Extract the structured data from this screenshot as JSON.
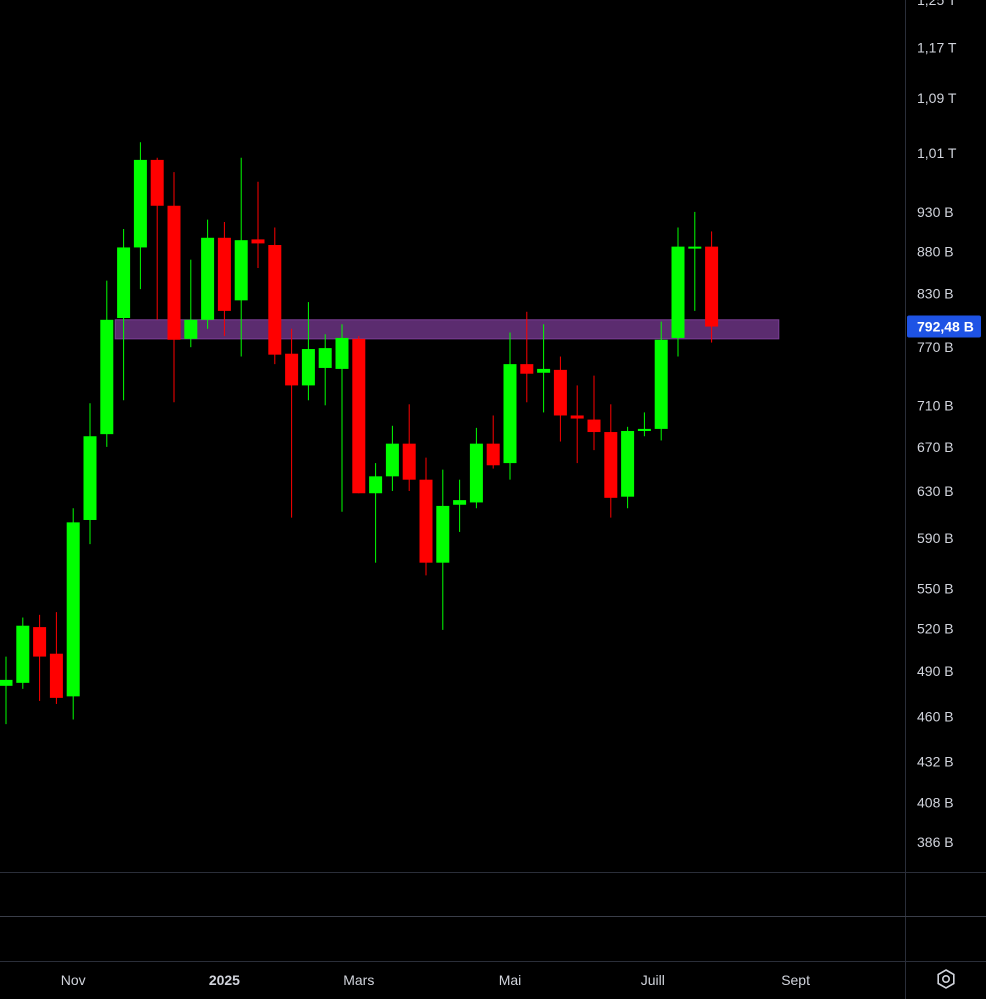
{
  "chart_data": {
    "type": "candlestick",
    "y_scale": "log",
    "y_unit_suffix": "B = milliards, T = billions",
    "y_ticks": [
      {
        "label": "1,25 T",
        "value": 1250
      },
      {
        "label": "1,17 T",
        "value": 1170
      },
      {
        "label": "1,09 T",
        "value": 1090
      },
      {
        "label": "1,01 T",
        "value": 1010
      },
      {
        "label": "930 B",
        "value": 930
      },
      {
        "label": "880 B",
        "value": 880
      },
      {
        "label": "830 B",
        "value": 830
      },
      {
        "label": "770 B",
        "value": 770
      },
      {
        "label": "710 B",
        "value": 710
      },
      {
        "label": "670 B",
        "value": 670
      },
      {
        "label": "630 B",
        "value": 630
      },
      {
        "label": "590 B",
        "value": 590
      },
      {
        "label": "550 B",
        "value": 550
      },
      {
        "label": "520 B",
        "value": 520
      },
      {
        "label": "490 B",
        "value": 490
      },
      {
        "label": "460 B",
        "value": 460
      },
      {
        "label": "432 B",
        "value": 432
      },
      {
        "label": "408 B",
        "value": 408
      },
      {
        "label": "386 B",
        "value": 386
      }
    ],
    "x_ticks": [
      {
        "label": "Nov",
        "week": 4,
        "bold": false
      },
      {
        "label": "2025",
        "week": 13,
        "bold": true
      },
      {
        "label": "Mars",
        "week": 21,
        "bold": false
      },
      {
        "label": "Mai",
        "week": 30,
        "bold": false
      },
      {
        "label": "Juill",
        "week": 38.5,
        "bold": false
      },
      {
        "label": "Sept",
        "week": 47,
        "bold": false
      }
    ],
    "current_price": {
      "label": "792,48 B",
      "value": 792.48,
      "color": "#1e53e5"
    },
    "resistance_band": {
      "low": 779,
      "high": 800,
      "start_week": 6.5,
      "end_week": 46,
      "color": "#5b2c6f"
    },
    "up_color": "#00ff00",
    "down_color": "#ff0000",
    "candles": [
      {
        "week": 0,
        "o": 480,
        "h": 500,
        "l": 455,
        "c": 484
      },
      {
        "week": 1,
        "o": 482,
        "h": 528,
        "l": 478,
        "c": 522
      },
      {
        "week": 2,
        "o": 521,
        "h": 530,
        "l": 470,
        "c": 500
      },
      {
        "week": 3,
        "o": 502,
        "h": 532,
        "l": 468,
        "c": 472
      },
      {
        "week": 4,
        "o": 473,
        "h": 615,
        "l": 458,
        "c": 603
      },
      {
        "week": 5,
        "o": 605,
        "h": 712,
        "l": 585,
        "c": 680
      },
      {
        "week": 6,
        "o": 682,
        "h": 845,
        "l": 670,
        "c": 800
      },
      {
        "week": 7,
        "o": 802,
        "h": 908,
        "l": 715,
        "c": 885
      },
      {
        "week": 8,
        "o": 885,
        "h": 1025,
        "l": 835,
        "c": 1000
      },
      {
        "week": 9,
        "o": 1000,
        "h": 1003,
        "l": 800,
        "c": 938
      },
      {
        "week": 10,
        "o": 938,
        "h": 983,
        "l": 713,
        "c": 778
      },
      {
        "week": 11,
        "o": 779,
        "h": 870,
        "l": 770,
        "c": 800
      },
      {
        "week": 12,
        "o": 800,
        "h": 920,
        "l": 790,
        "c": 897
      },
      {
        "week": 13,
        "o": 897,
        "h": 917,
        "l": 782,
        "c": 810
      },
      {
        "week": 14,
        "o": 822,
        "h": 1003,
        "l": 760,
        "c": 894
      },
      {
        "week": 15,
        "o": 895,
        "h": 970,
        "l": 860,
        "c": 890
      },
      {
        "week": 16,
        "o": 888,
        "h": 910,
        "l": 752,
        "c": 762
      },
      {
        "week": 17,
        "o": 763,
        "h": 790,
        "l": 607,
        "c": 730
      },
      {
        "week": 18,
        "o": 730,
        "h": 820,
        "l": 715,
        "c": 768
      },
      {
        "week": 19,
        "o": 748,
        "h": 784,
        "l": 710,
        "c": 769
      },
      {
        "week": 20,
        "o": 747,
        "h": 795,
        "l": 612,
        "c": 780
      },
      {
        "week": 21,
        "o": 779,
        "h": 782,
        "l": 628,
        "c": 628
      },
      {
        "week": 22,
        "o": 628,
        "h": 655,
        "l": 570,
        "c": 643
      },
      {
        "week": 23,
        "o": 643,
        "h": 690,
        "l": 630,
        "c": 673
      },
      {
        "week": 24,
        "o": 673,
        "h": 711,
        "l": 630,
        "c": 640
      },
      {
        "week": 25,
        "o": 640,
        "h": 660,
        "l": 560,
        "c": 570
      },
      {
        "week": 26,
        "o": 570,
        "h": 649,
        "l": 519,
        "c": 617
      },
      {
        "week": 27,
        "o": 618,
        "h": 640,
        "l": 595,
        "c": 622
      },
      {
        "week": 28,
        "o": 620,
        "h": 688,
        "l": 615,
        "c": 673
      },
      {
        "week": 29,
        "o": 673,
        "h": 700,
        "l": 650,
        "c": 653
      },
      {
        "week": 30,
        "o": 655,
        "h": 786,
        "l": 640,
        "c": 752
      },
      {
        "week": 31,
        "o": 752,
        "h": 809,
        "l": 713,
        "c": 742
      },
      {
        "week": 32,
        "o": 743,
        "h": 795,
        "l": 703,
        "c": 747
      },
      {
        "week": 33,
        "o": 746,
        "h": 760,
        "l": 675,
        "c": 700
      },
      {
        "week": 34,
        "o": 700,
        "h": 730,
        "l": 655,
        "c": 697
      },
      {
        "week": 35,
        "o": 696,
        "h": 740,
        "l": 667,
        "c": 684
      },
      {
        "week": 36,
        "o": 684,
        "h": 711,
        "l": 607,
        "c": 624
      },
      {
        "week": 37,
        "o": 625,
        "h": 689,
        "l": 615,
        "c": 685
      },
      {
        "week": 38,
        "o": 685,
        "h": 703,
        "l": 680,
        "c": 687
      },
      {
        "week": 39,
        "o": 687,
        "h": 798,
        "l": 676,
        "c": 778
      },
      {
        "week": 40,
        "o": 780,
        "h": 910,
        "l": 760,
        "c": 886
      },
      {
        "week": 41,
        "o": 886,
        "h": 930,
        "l": 810,
        "c": 886
      },
      {
        "week": 42,
        "o": 886,
        "h": 905,
        "l": 775,
        "c": 792.48
      }
    ]
  }
}
